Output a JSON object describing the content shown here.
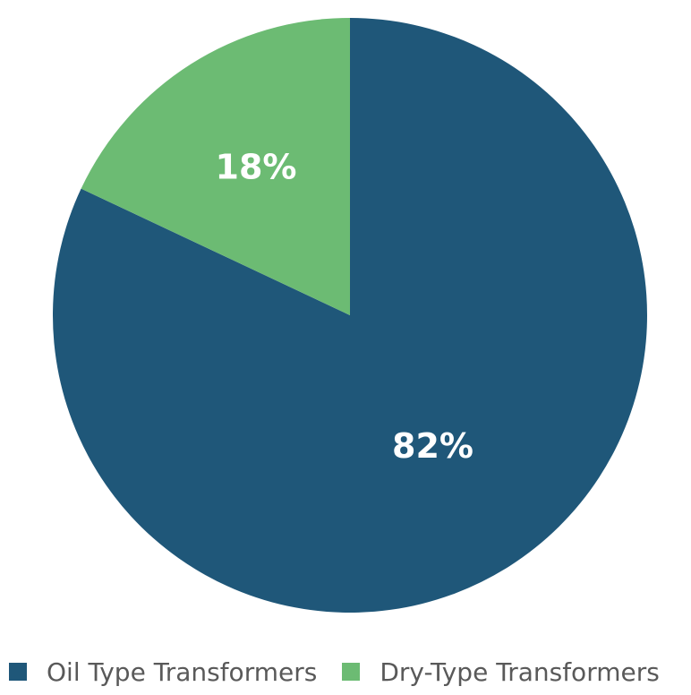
{
  "chart_data": {
    "type": "pie",
    "title": "",
    "categories": [
      "Oil Type Transformers",
      "Dry-Type Transformers"
    ],
    "values": [
      82,
      18
    ],
    "labels": [
      "82%",
      "18%"
    ],
    "colors": [
      "#1f5779",
      "#6cbb73"
    ],
    "start_angle_deg": 0,
    "direction": "clockwise",
    "legend": {
      "placement": "bottom",
      "items": [
        {
          "label": "Oil Type Transformers",
          "color": "#1f5779"
        },
        {
          "label": "Dry-Type Transformers",
          "color": "#6cbb73"
        }
      ]
    }
  }
}
